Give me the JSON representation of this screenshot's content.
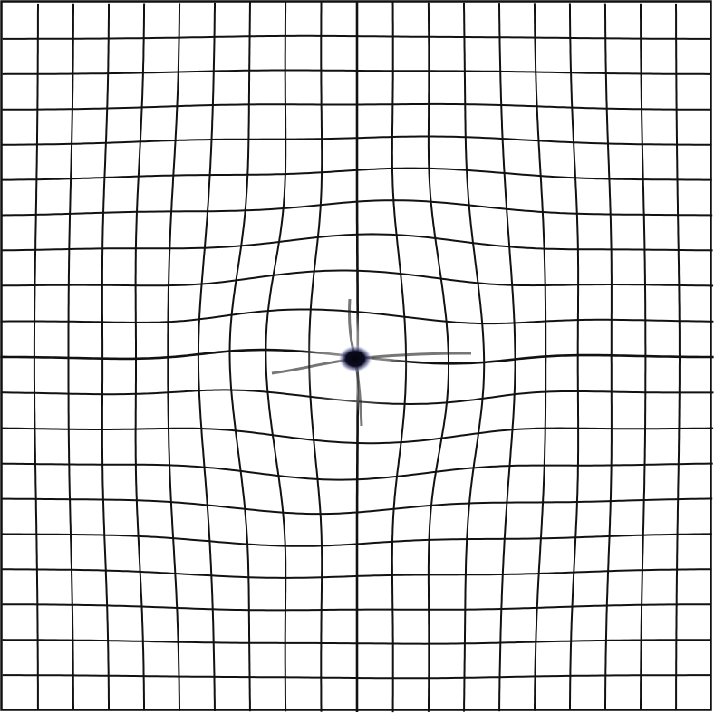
{
  "diagram": {
    "kind": "amsler-grid-distorted",
    "columns": 20,
    "rows": 20,
    "line_color": "#111111",
    "background_color": "#ffffff",
    "dot_color": "#0b0b1e",
    "dot_halo_color": "#5a5e9a",
    "distortion": "metamorphopsia",
    "center_dot": "central-fixation-dot"
  }
}
